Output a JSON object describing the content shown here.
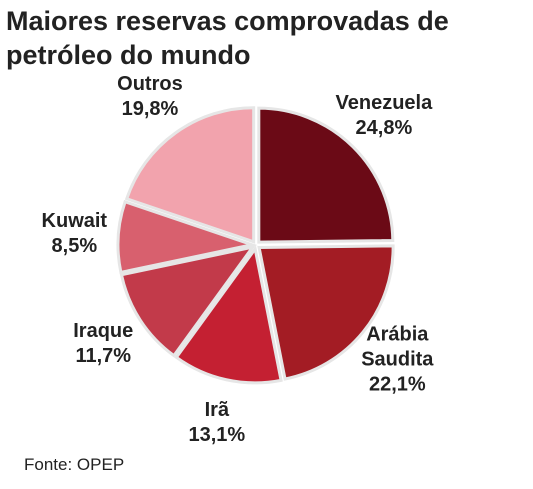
{
  "chart_data": {
    "type": "pie",
    "title": "Maiores reservas comprovadas de petróleo do mundo",
    "categories": [
      "Venezuela",
      "Arábia Saudita",
      "Irã",
      "Iraque",
      "Kuwait",
      "Outros"
    ],
    "values": [
      24.8,
      22.1,
      13.1,
      11.7,
      8.5,
      19.8
    ],
    "value_labels": [
      "24,8%",
      "22,1%",
      "13,1%",
      "11,7%",
      "8,5%",
      "19,8%"
    ],
    "colors": [
      "#6b0a16",
      "#a31c24",
      "#c42032",
      "#c23a4a",
      "#d8606e",
      "#f2a3ad"
    ],
    "source": "Fonte: OPEP"
  }
}
